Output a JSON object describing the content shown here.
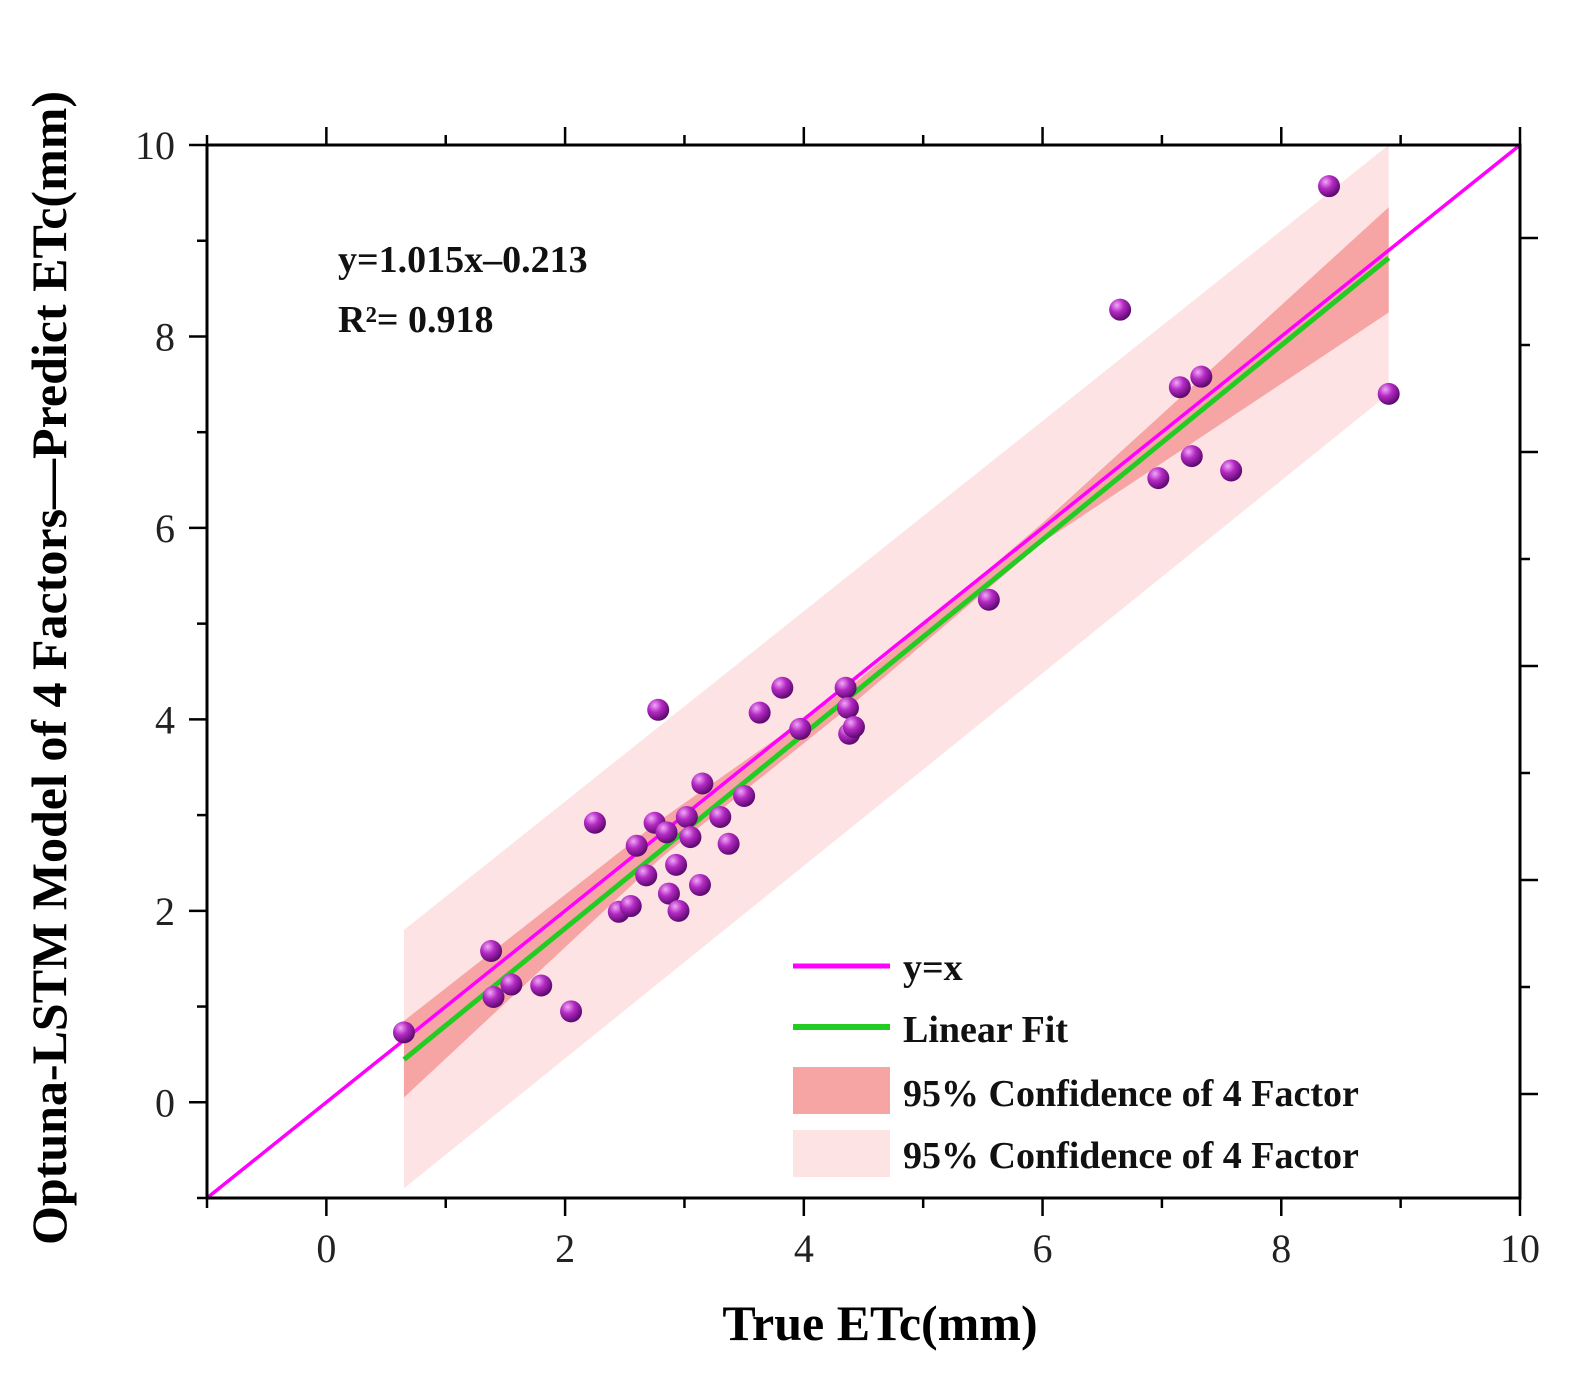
{
  "chart_data": {
    "type": "scatter",
    "xlabel": "True ETc(mm)",
    "ylabel": "Optuna-LSTM Model of 4 Factors—Predict ETc(mm)",
    "xlim": [
      -1,
      10
    ],
    "ylim": [
      -1,
      10
    ],
    "x_ticks": [
      "0",
      "2",
      "4",
      "6",
      "8",
      "10"
    ],
    "y_ticks": [
      "0",
      "2",
      "4",
      "6",
      "8",
      "10"
    ],
    "x_tick_values": [
      0,
      2,
      4,
      6,
      8,
      10
    ],
    "y_tick_values": [
      0,
      2,
      4,
      6,
      8,
      10
    ],
    "equation": "y=1.015x–0.213",
    "r_squared": "R²= 0.918",
    "fit": {
      "slope": 1.015,
      "intercept": -0.213,
      "x_range": [
        0.65,
        8.9
      ]
    },
    "confidence_band": {
      "lower": [
        [
          0.65,
          0.05
        ],
        [
          2.8,
          2.55
        ],
        [
          4.4,
          4.15
        ],
        [
          6.0,
          5.85
        ],
        [
          8.9,
          8.25
        ]
      ],
      "upper": [
        [
          0.65,
          0.85
        ],
        [
          2.8,
          2.95
        ],
        [
          4.4,
          4.35
        ],
        [
          6.0,
          6.05
        ],
        [
          8.9,
          9.35
        ]
      ]
    },
    "prediction_band": {
      "lower": [
        [
          0.65,
          -0.9
        ],
        [
          8.9,
          7.4
        ]
      ],
      "upper": [
        [
          0.65,
          1.8
        ],
        [
          8.9,
          10.0
        ]
      ]
    },
    "points": [
      {
        "x": 0.65,
        "y": 0.73
      },
      {
        "x": 1.38,
        "y": 1.58
      },
      {
        "x": 1.4,
        "y": 1.1
      },
      {
        "x": 1.55,
        "y": 1.23
      },
      {
        "x": 1.8,
        "y": 1.22
      },
      {
        "x": 2.05,
        "y": 0.95
      },
      {
        "x": 2.25,
        "y": 2.92
      },
      {
        "x": 2.45,
        "y": 1.99
      },
      {
        "x": 2.55,
        "y": 2.05
      },
      {
        "x": 2.6,
        "y": 2.68
      },
      {
        "x": 2.68,
        "y": 2.37
      },
      {
        "x": 2.75,
        "y": 2.92
      },
      {
        "x": 2.78,
        "y": 4.1
      },
      {
        "x": 2.85,
        "y": 2.82
      },
      {
        "x": 2.87,
        "y": 2.18
      },
      {
        "x": 2.93,
        "y": 2.48
      },
      {
        "x": 2.95,
        "y": 2.0
      },
      {
        "x": 3.02,
        "y": 2.98
      },
      {
        "x": 3.05,
        "y": 2.77
      },
      {
        "x": 3.13,
        "y": 2.27
      },
      {
        "x": 3.15,
        "y": 3.33
      },
      {
        "x": 3.3,
        "y": 2.98
      },
      {
        "x": 3.37,
        "y": 2.7
      },
      {
        "x": 3.5,
        "y": 3.2
      },
      {
        "x": 3.63,
        "y": 4.07
      },
      {
        "x": 3.82,
        "y": 4.33
      },
      {
        "x": 3.97,
        "y": 3.9
      },
      {
        "x": 4.35,
        "y": 4.33
      },
      {
        "x": 4.37,
        "y": 4.12
      },
      {
        "x": 4.38,
        "y": 3.85
      },
      {
        "x": 4.42,
        "y": 3.92
      },
      {
        "x": 5.55,
        "y": 5.25
      },
      {
        "x": 6.65,
        "y": 8.28
      },
      {
        "x": 6.97,
        "y": 6.52
      },
      {
        "x": 7.15,
        "y": 7.47
      },
      {
        "x": 7.25,
        "y": 6.75
      },
      {
        "x": 7.33,
        "y": 7.58
      },
      {
        "x": 7.58,
        "y": 6.6
      },
      {
        "x": 8.4,
        "y": 9.57
      },
      {
        "x": 8.9,
        "y": 7.4
      }
    ],
    "legend": {
      "position": "bottom-right",
      "entries": [
        {
          "label": "y=x",
          "kind": "line",
          "color": "#ff00ff"
        },
        {
          "label": "Linear Fit",
          "kind": "line",
          "color": "#22cc22"
        },
        {
          "label": "95% Confidence of 4 Factor",
          "kind": "band",
          "color": "#f6a4a4"
        },
        {
          "label": "95% Confidence of 4 Factor",
          "kind": "band",
          "color": "#fde3e3"
        }
      ]
    },
    "colors": {
      "identity": "#ff00ff",
      "fit": "#22cc22",
      "confidence": "#f6a4a4",
      "prediction": "#fde3e3",
      "point_light": "#f1a8f7",
      "point_mid": "#b42ac4",
      "point_dark": "#5e0a6f"
    }
  }
}
